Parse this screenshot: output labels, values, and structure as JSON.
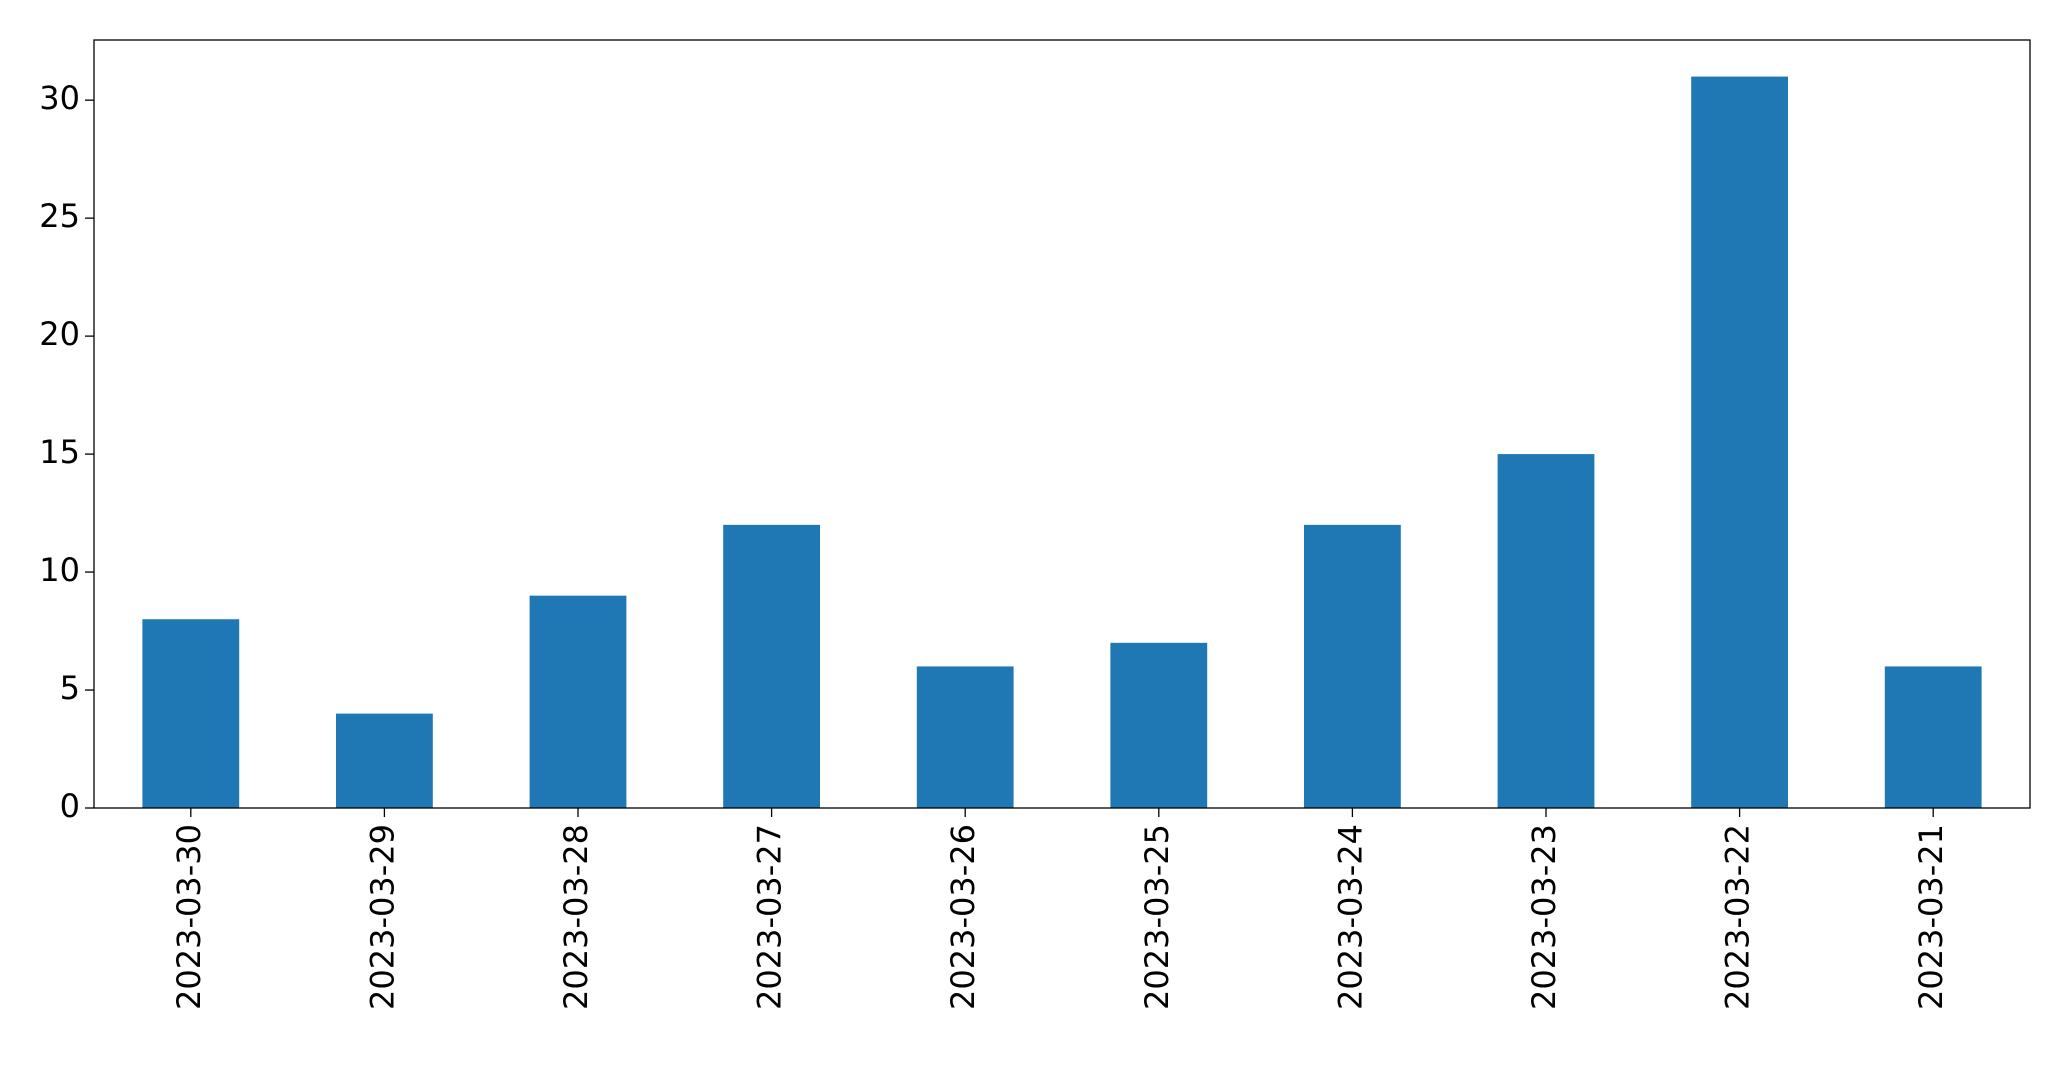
{
  "chart_data": {
    "type": "bar",
    "categories": [
      "2023-03-30",
      "2023-03-29",
      "2023-03-28",
      "2023-03-27",
      "2023-03-26",
      "2023-03-25",
      "2023-03-24",
      "2023-03-23",
      "2023-03-22",
      "2023-03-21"
    ],
    "values": [
      8,
      4,
      9,
      12,
      6,
      7,
      12,
      15,
      31,
      6
    ],
    "color": "#1f77b4",
    "ylim": [
      0,
      32.55
    ],
    "yticks": [
      0,
      5,
      10,
      15,
      20,
      25,
      30
    ],
    "grid": false
  }
}
